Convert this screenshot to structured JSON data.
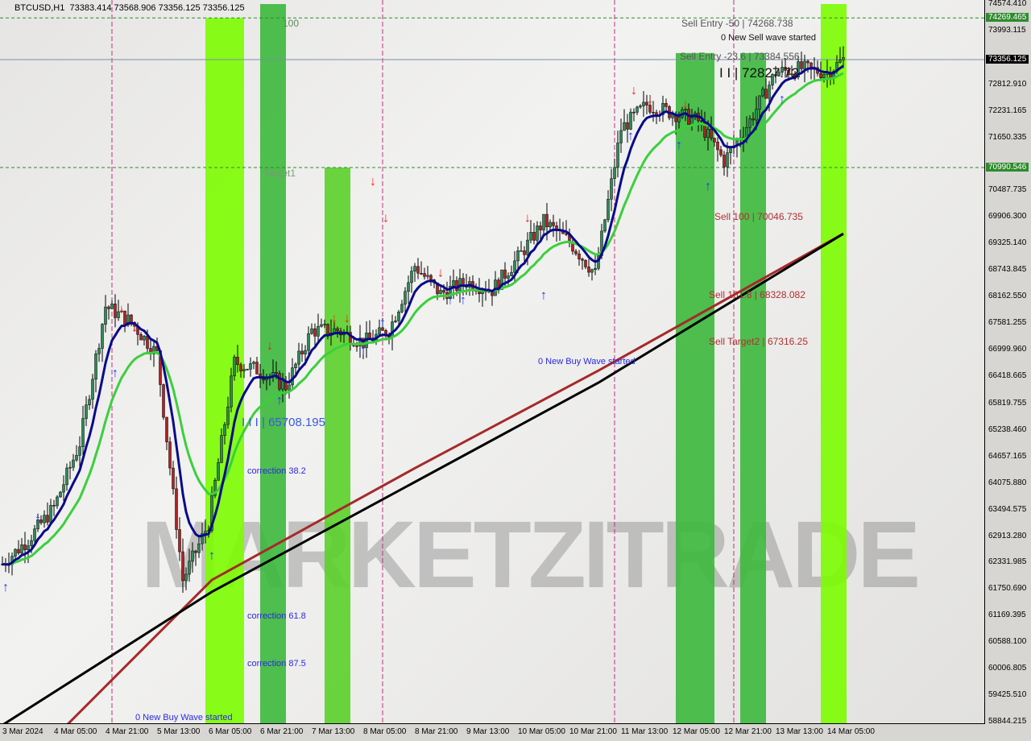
{
  "header": {
    "symbol": "BTCUSD,H1",
    "ohlc": "73383.414 73568.906 73356.125 73356.125"
  },
  "watermark": "MARKETZITRADE",
  "chart_data": {
    "type": "candlestick",
    "title": "BTCUSD,H1",
    "ylim": [
      58844.215,
      74574.41
    ],
    "grid": false,
    "y_ticks": [
      "74574.410",
      "73993.115",
      "72812.910",
      "72231.165",
      "71650.335",
      "70487.735",
      "69906.300",
      "69325.140",
      "68743.845",
      "68162.550",
      "67581.255",
      "66999.960",
      "66418.665",
      "65819.755",
      "65238.460",
      "64657.165",
      "64075.880",
      "63494.575",
      "62913.280",
      "62331.985",
      "61750.690",
      "61169.395",
      "60588.100",
      "60006.805",
      "59425.510",
      "58844.215"
    ],
    "x_ticks": [
      "3 Mar 2024",
      "4 Mar 05:00",
      "4 Mar 21:00",
      "5 Mar 13:00",
      "6 Mar 05:00",
      "6 Mar 21:00",
      "7 Mar 13:00",
      "8 Mar 05:00",
      "8 Mar 21:00",
      "9 Mar 13:00",
      "10 Mar 05:00",
      "10 Mar 21:00",
      "11 Mar 13:00",
      "12 Mar 05:00",
      "12 Mar 21:00",
      "13 Mar 13:00",
      "14 Mar 05:00"
    ],
    "price_tags": [
      {
        "value": "74269.465",
        "color": "#2e8b2e"
      },
      {
        "value": "73356.125",
        "color": "#000000"
      },
      {
        "value": "70990.546",
        "color": "#2e8b2e"
      }
    ],
    "close_path": [
      [
        "2024-03-03 13:00",
        62300
      ],
      [
        "2024-03-03 21:00",
        62834
      ],
      [
        "2024-03-04 05:00",
        63540
      ],
      [
        "2024-03-04 13:00",
        64950
      ],
      [
        "2024-03-04 21:00",
        67950
      ],
      [
        "2024-03-05 05:00",
        67600
      ],
      [
        "2024-03-05 13:00",
        66900
      ],
      [
        "2024-03-05 21:00",
        61950
      ],
      [
        "2024-03-06 05:00",
        63190
      ],
      [
        "2024-03-06 13:00",
        66720
      ],
      [
        "2024-03-06 21:00",
        66540
      ],
      [
        "2024-03-07 05:00",
        66190
      ],
      [
        "2024-03-07 13:00",
        67420
      ],
      [
        "2024-03-07 21:00",
        67420
      ],
      [
        "2024-03-08 05:00",
        67160
      ],
      [
        "2024-03-08 13:00",
        67420
      ],
      [
        "2024-03-08 21:00",
        68836
      ],
      [
        "2024-03-09 05:00",
        68220
      ],
      [
        "2024-03-09 13:00",
        68484
      ],
      [
        "2024-03-09 21:00",
        68310
      ],
      [
        "2024-03-10 05:00",
        69010
      ],
      [
        "2024-03-10 13:00",
        69808
      ],
      [
        "2024-03-10 21:00",
        69366
      ],
      [
        "2024-03-11 05:00",
        68660
      ],
      [
        "2024-03-11 13:00",
        71838
      ],
      [
        "2024-03-11 21:00",
        72368
      ],
      [
        "2024-03-12 05:00",
        72190
      ],
      [
        "2024-03-12 13:00",
        72014
      ],
      [
        "2024-03-12 21:00",
        71131
      ],
      [
        "2024-03-13 05:00",
        72014
      ],
      [
        "2024-03-13 13:00",
        73073
      ],
      [
        "2024-03-13 21:00",
        73162
      ],
      [
        "2024-03-14 05:00",
        73073
      ],
      [
        "2024-03-14 10:00",
        73356
      ]
    ],
    "ma_slow_black": [
      [
        "2024-03-03 13:00",
        58770
      ],
      [
        "2024-03-06 06:00",
        61690
      ],
      [
        "2024-03-11 06:00",
        66275
      ],
      [
        "2024-03-14 10:00",
        69540
      ]
    ],
    "ma_slow_red": [
      [
        "2024-03-04 09:00",
        58770
      ],
      [
        "2024-03-06 06:00",
        61950
      ],
      [
        "2024-03-08 21:00",
        64400
      ],
      [
        "2024-03-11 06:00",
        66540
      ],
      [
        "2024-03-14 10:00",
        69540
      ]
    ],
    "levels": [
      {
        "value": 74269.465,
        "color": "#2e8b2e",
        "style": "dashed"
      },
      {
        "value": 73356.125,
        "color": "#7a8ea8",
        "style": "solid"
      },
      {
        "value": 70990.546,
        "color": "#2e8b2e",
        "style": "dashed"
      }
    ],
    "zones": [
      {
        "from": "2024-03-06 04:00",
        "to": "2024-03-06 16:00",
        "top": 74269,
        "color": "#7cfc00"
      },
      {
        "from": "2024-03-06 21:00",
        "to": "2024-03-07 05:00",
        "top": 74574,
        "color": "#3cb83c"
      },
      {
        "from": "2024-03-07 17:00",
        "to": "2024-03-08 01:00",
        "top": 70990,
        "color": "#5ad02a"
      },
      {
        "from": "2024-03-12 06:00",
        "to": "2024-03-12 18:00",
        "top": 73500,
        "color": "#3cb83c"
      },
      {
        "from": "2024-03-12 26:00",
        "to": "2024-03-13 10:00",
        "top": 73500,
        "color": "#3cb83c"
      },
      {
        "from": "2024-03-14 03:00",
        "to": "2024-03-14 11:00",
        "top": 74574,
        "color": "#7cfc00"
      }
    ],
    "annotations": {
      "top_level": "100",
      "target1": "Target1",
      "buy_level": "I I I | 65708.195",
      "sell_level": "I I | 72827.72",
      "correction_382": "correction 38.2",
      "correction_618": "correction 61.8",
      "correction_875": "correction 87.5",
      "buy_wave_1": "0 New Buy Wave started",
      "buy_wave_2": "0 New Buy Wave started",
      "sell_wave": "0 New Sell wave started",
      "sell_entry_50": "Sell Entry -50 | 74268.738",
      "sell_entry_236": "Sell Entry -23.6 | 73384.556",
      "sell_100": "Sell 100 | 70046.735",
      "sell_1618": "Sell 161.8 | 68328.082",
      "sell_target2": "Sell Target2 | 67316.25"
    },
    "signals": [
      {
        "type": "buy",
        "time": "2024-03-03 14:00",
        "price": 61700
      },
      {
        "type": "buy",
        "time": "2024-03-04 00:00",
        "price": 63200
      },
      {
        "type": "buy",
        "time": "2024-03-05 00:00",
        "price": 66400
      },
      {
        "type": "sell",
        "time": "2024-03-05 02:00",
        "price": 67800
      },
      {
        "type": "sell",
        "time": "2024-03-05 06:00",
        "price": 67400
      },
      {
        "type": "buy",
        "time": "2024-03-06 06:00",
        "price": 62400
      },
      {
        "type": "sell",
        "time": "2024-03-07 00:00",
        "price": 67000
      },
      {
        "type": "buy",
        "time": "2024-03-07 03:00",
        "price": 65800
      },
      {
        "type": "sell",
        "time": "2024-03-07 20:00",
        "price": 67600
      },
      {
        "type": "sell",
        "time": "2024-03-08 00:00",
        "price": 67600
      },
      {
        "type": "buy",
        "time": "2024-03-08 05:00",
        "price": 66900
      },
      {
        "type": "sell",
        "time": "2024-03-08 08:00",
        "price": 70600
      },
      {
        "type": "sell",
        "time": "2024-03-08 12:00",
        "price": 69800
      },
      {
        "type": "buy",
        "time": "2024-03-08 11:00",
        "price": 67500
      },
      {
        "type": "sell",
        "time": "2024-03-09 05:00",
        "price": 68600
      },
      {
        "type": "buy",
        "time": "2024-03-09 08:00",
        "price": 68000
      },
      {
        "type": "buy",
        "time": "2024-03-09 12:00",
        "price": 68000
      },
      {
        "type": "sell",
        "time": "2024-03-10 08:00",
        "price": 69800
      },
      {
        "type": "buy",
        "time": "2024-03-10 13:00",
        "price": 68100
      },
      {
        "type": "buy",
        "time": "2024-03-11 16:00",
        "price": 71600
      },
      {
        "type": "sell",
        "time": "2024-03-11 17:00",
        "price": 72600
      },
      {
        "type": "sell",
        "time": "2024-03-11 22:00",
        "price": 72400
      },
      {
        "type": "buy",
        "time": "2024-03-12 07:00",
        "price": 71400
      },
      {
        "type": "sell",
        "time": "2024-03-12 09:00",
        "price": 72300
      },
      {
        "type": "buy",
        "time": "2024-03-12 16:00",
        "price": 70500
      },
      {
        "type": "buy",
        "time": "2024-03-13 15:00",
        "price": 72400
      }
    ]
  }
}
